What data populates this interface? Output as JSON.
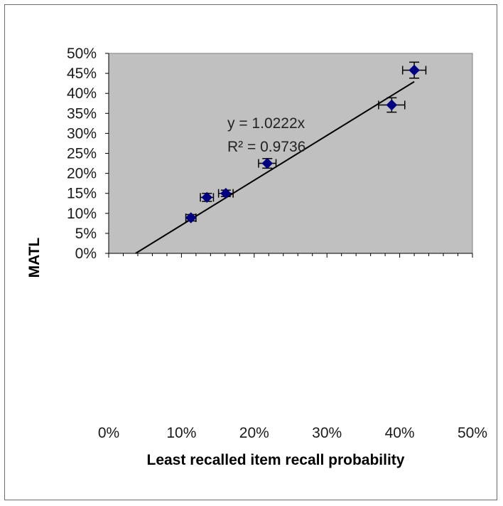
{
  "chart_data": {
    "type": "scatter",
    "title": "",
    "xlabel": "Least recalled item recall probability",
    "ylabel": "MATL",
    "xlim": [
      0,
      0.5
    ],
    "ylim": [
      0,
      0.5
    ],
    "x_ticks": [
      "0%",
      "10%",
      "20%",
      "30%",
      "40%",
      "50%"
    ],
    "y_ticks": [
      "0%",
      "5%",
      "10%",
      "15%",
      "20%",
      "25%",
      "30%",
      "35%",
      "40%",
      "45%",
      "50%"
    ],
    "grid": false,
    "legend": "none",
    "points": [
      {
        "x": 0.113,
        "y": 0.089,
        "x_err": 0.007,
        "y_err": 0.008
      },
      {
        "x": 0.135,
        "y": 0.14,
        "x_err": 0.009,
        "y_err": 0.01
      },
      {
        "x": 0.161,
        "y": 0.15,
        "x_err": 0.01,
        "y_err": 0.008
      },
      {
        "x": 0.218,
        "y": 0.225,
        "x_err": 0.012,
        "y_err": 0.012
      },
      {
        "x": 0.389,
        "y": 0.371,
        "x_err": 0.018,
        "y_err": 0.018
      },
      {
        "x": 0.42,
        "y": 0.458,
        "x_err": 0.016,
        "y_err": 0.02
      }
    ],
    "trendline": {
      "equation": "y = 1.0222x",
      "r_squared": "R² = 0.9736",
      "x_start": 0.037,
      "x_end": 0.42
    },
    "colors": {
      "plot_background": "#c0c0c0",
      "marker": "#000080",
      "trendline": "#000000",
      "error_bars": "#000000"
    }
  }
}
